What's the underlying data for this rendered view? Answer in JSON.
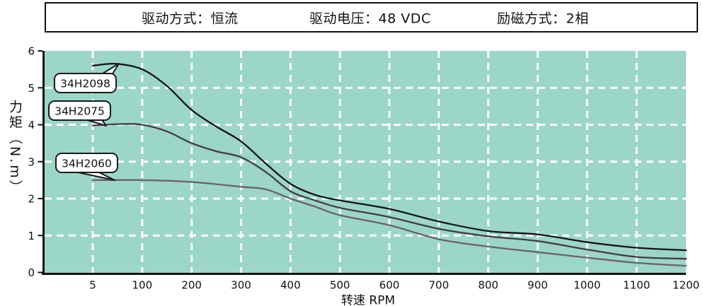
{
  "header": {
    "drive_mode": "驱动方式：恒流",
    "drive_voltage": "驱动电压：48 VDC",
    "excitation": "励磁方式：2相"
  },
  "chart_data": {
    "type": "line",
    "title": "",
    "xlabel": "转速 RPM",
    "ylabel": "力矩（N.m）",
    "x_ticks": [
      5,
      100,
      200,
      300,
      400,
      500,
      600,
      700,
      800,
      900,
      1000,
      1100,
      1200
    ],
    "y_ticks": [
      0,
      1,
      2,
      3,
      4,
      5,
      6
    ],
    "ylim": [
      0,
      6
    ],
    "xlim": [
      5,
      1200
    ],
    "grid": "dashed-white",
    "legend_position": "callouts-on-lines",
    "colors": {
      "plot_bg": "#9bd6c8",
      "grid": "#ffffff",
      "axis": "#111111",
      "callout_bg": "#ffffff",
      "callout_border": "#1a1a1a"
    },
    "series": [
      {
        "name": "34H2098",
        "color": "#151515",
        "x": [
          5,
          50,
          100,
          150,
          200,
          250,
          300,
          350,
          400,
          450,
          500,
          600,
          700,
          800,
          900,
          1000,
          1100,
          1200
        ],
        "values": [
          5.6,
          5.65,
          5.5,
          5.05,
          4.4,
          3.95,
          3.55,
          2.95,
          2.4,
          2.1,
          1.95,
          1.72,
          1.38,
          1.12,
          1.03,
          0.82,
          0.67,
          0.6
        ]
      },
      {
        "name": "34H2075",
        "color": "#433d3f",
        "x": [
          5,
          60,
          100,
          150,
          200,
          250,
          300,
          350,
          400,
          450,
          500,
          600,
          700,
          800,
          900,
          1000,
          1100,
          1200
        ],
        "values": [
          3.98,
          4.02,
          4.0,
          3.82,
          3.5,
          3.28,
          3.12,
          2.72,
          2.2,
          1.95,
          1.75,
          1.5,
          1.18,
          0.98,
          0.85,
          0.62,
          0.42,
          0.37
        ]
      },
      {
        "name": "34H2060",
        "color": "#6a6264",
        "x": [
          5,
          100,
          200,
          300,
          350,
          400,
          450,
          500,
          600,
          700,
          800,
          900,
          1000,
          1100,
          1200
        ],
        "values": [
          2.5,
          2.5,
          2.45,
          2.32,
          2.25,
          2.0,
          1.78,
          1.55,
          1.28,
          0.9,
          0.7,
          0.55,
          0.4,
          0.26,
          0.18
        ]
      }
    ]
  }
}
